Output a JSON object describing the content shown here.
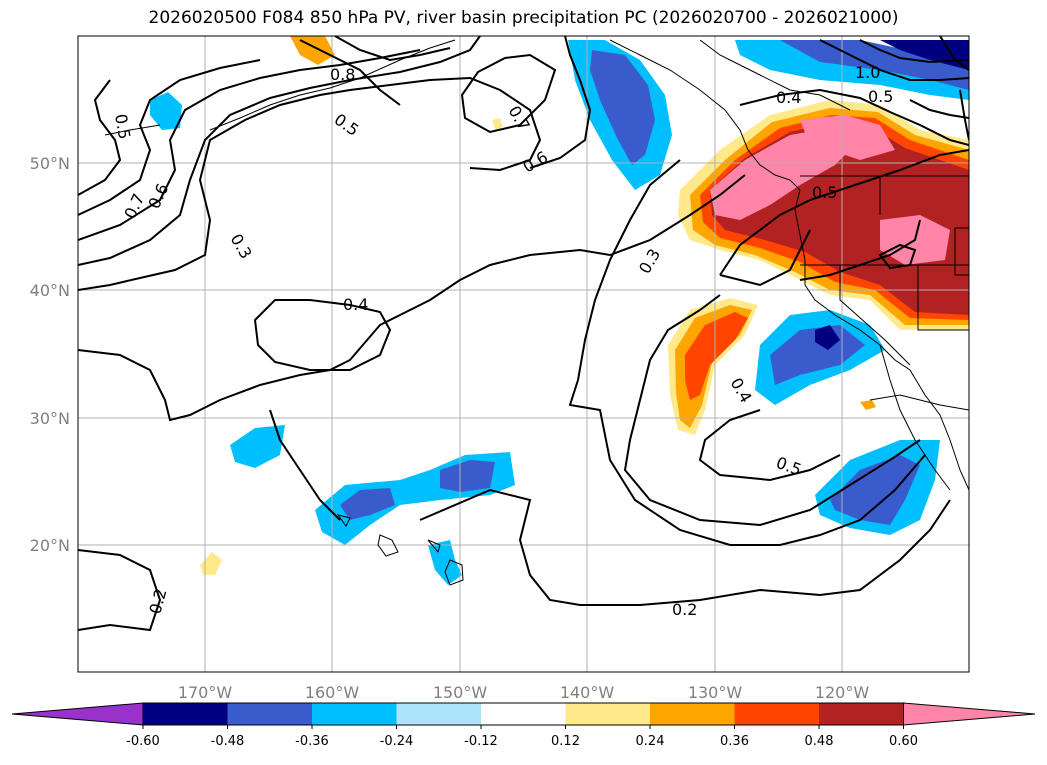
{
  "title": "2026020500 F084 850 hPa PV, river basin precipitation PC (2026020700 - 2026021000)",
  "map": {
    "lon_ticks": [
      "170°W",
      "160°W",
      "150°W",
      "140°W",
      "130°W",
      "120°W"
    ],
    "lat_ticks": [
      "50°N",
      "40°N",
      "30°N",
      "20°N"
    ],
    "contour_labels": [
      "0.5",
      "0.7",
      "0.6",
      "0.3",
      "0.8",
      "0.5",
      "0.7",
      "0.6",
      "0.4",
      "0.5",
      "0.3",
      "0.4",
      "0.5",
      "0.2",
      "0.2",
      "1.0",
      "0.5",
      "0.4"
    ]
  },
  "colorbar": {
    "ticks": [
      "-0.60",
      "-0.48",
      "-0.36",
      "-0.24",
      "-0.12",
      "0.12",
      "0.24",
      "0.36",
      "0.48",
      "0.60"
    ],
    "colors": [
      "#9932cc",
      "#000080",
      "#3a5bcc",
      "#00bfff",
      "#aee4fb",
      "#ffffff",
      "#ffe98a",
      "#ffa500",
      "#ff4500",
      "#b22222",
      "#ff85a8"
    ]
  }
}
